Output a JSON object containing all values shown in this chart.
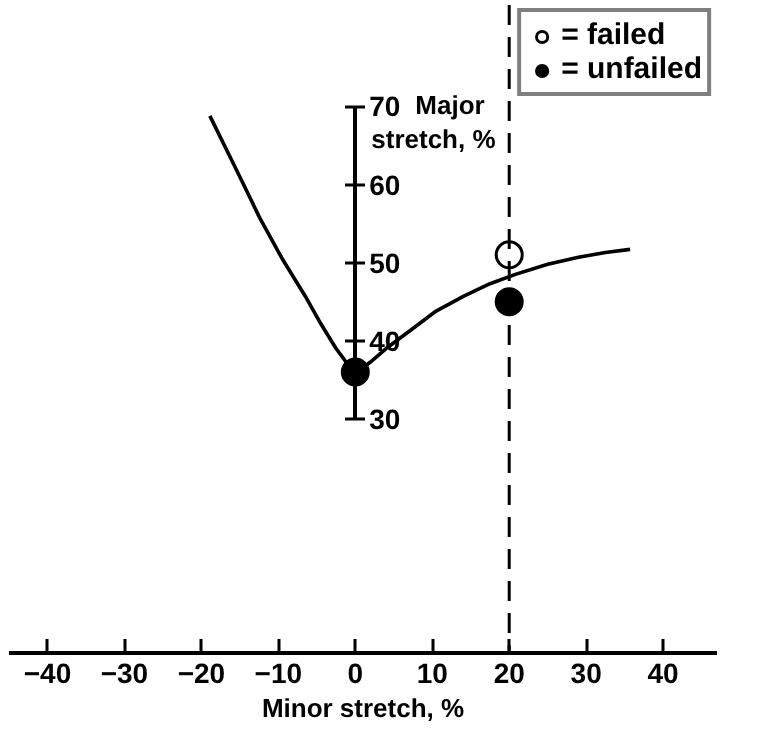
{
  "chart_data": {
    "type": "line",
    "xlabel": "Minor stretch, %",
    "ylabel": "Major stretch, %",
    "xlim": [
      -45,
      47
    ],
    "ylim": [
      0,
      83
    ],
    "xticks": [
      -40,
      -30,
      -20,
      -10,
      0,
      10,
      20,
      30,
      40
    ],
    "yticks": [
      30,
      40,
      50,
      60,
      70
    ],
    "grid": false,
    "legend": "top right",
    "ref_lines": [
      {
        "axis": "x",
        "value": 20,
        "line_style": "dashed",
        "color": "#000000"
      }
    ],
    "series": [
      {
        "x": [
          -18.9,
          -15.5,
          -12.4,
          -9.5,
          -6.5,
          -4.5,
          -2.5,
          -1,
          0,
          2,
          4,
          7.4,
          10.5,
          14.1,
          17.5,
          20.8,
          25,
          29,
          32.5,
          35.7
        ],
        "values": [
          68.8,
          62,
          55.7,
          50.5,
          45.7,
          42.2,
          39,
          37,
          35.8,
          37.3,
          39,
          41.5,
          43.8,
          45.7,
          47.3,
          48.5,
          49.8,
          50.7,
          51.3,
          51.7
        ],
        "color": "#000000",
        "marker": "none",
        "line_style": "solid"
      },
      {
        "type": "scatter",
        "name": "= failed",
        "x": [
          20
        ],
        "values": [
          51
        ],
        "color": "#ffffff",
        "marker": "circle"
      },
      {
        "type": "scatter",
        "name": "= unfailed",
        "x": [
          0,
          20
        ],
        "values": [
          36,
          45
        ],
        "color": "#000000",
        "marker": "circle"
      }
    ]
  }
}
